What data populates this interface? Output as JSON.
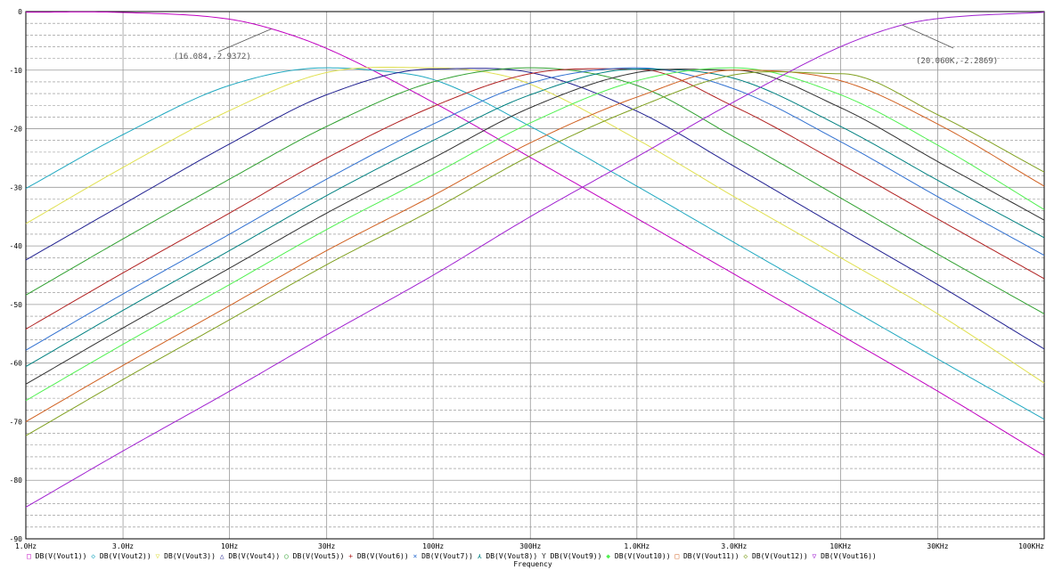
{
  "chart_data": {
    "type": "line",
    "title": "",
    "xlabel": "Frequency",
    "ylabel": "",
    "x_scale": "log",
    "xlim": [
      1,
      100000
    ],
    "ylim": [
      -90,
      0
    ],
    "x_ticks": [
      1,
      3,
      10,
      30,
      100,
      300,
      1000,
      3000,
      10000,
      30000,
      100000
    ],
    "x_tick_labels": [
      "1.0Hz",
      "3.0Hz",
      "10Hz",
      "30Hz",
      "100Hz",
      "300Hz",
      "1.0KHz",
      "3.0KHz",
      "10KHz",
      "30KHz",
      "100KHz"
    ],
    "y_ticks": [
      0,
      -10,
      -20,
      -30,
      -40,
      -50,
      -60,
      -70,
      -80,
      -90
    ],
    "y_tick_labels": [
      "0",
      "-10",
      "-20",
      "-30",
      "-40",
      "-50",
      "-60",
      "-70",
      "-80",
      "-90"
    ],
    "grid": true,
    "legend_position": "bottom",
    "series": [
      {
        "name": "DB(V(Vout1))",
        "color": "#c000c0",
        "marker": "□",
        "x": [
          1,
          3,
          10,
          16.08,
          30,
          100,
          300,
          1000,
          3000,
          10000,
          30000,
          100000
        ],
        "y": [
          -0.1,
          -0.15,
          -1.3,
          -2.94,
          -6.3,
          -15.5,
          -24.9,
          -35.3,
          -44.8,
          -55.2,
          -64.8,
          -75.8
        ]
      },
      {
        "name": "DB(V(Vout2))",
        "color": "#20a8c0",
        "marker": "◇",
        "x": [
          1,
          3,
          10,
          30,
          50,
          100,
          300,
          1000,
          3000,
          10000,
          30000,
          100000
        ],
        "y": [
          -30.2,
          -21.0,
          -12.6,
          -9.6,
          -10.0,
          -11.6,
          -19.6,
          -29.8,
          -39.4,
          -49.8,
          -59.3,
          -69.6
        ]
      },
      {
        "name": "DB(V(Vout3))",
        "color": "#e0e050",
        "marker": "▽",
        "x": [
          1,
          3,
          10,
          30,
          100,
          200,
          300,
          1000,
          3000,
          10000,
          30000,
          100000
        ],
        "y": [
          -36.2,
          -26.6,
          -16.9,
          -10.4,
          -9.6,
          -10.6,
          -12.4,
          -21.8,
          -31.6,
          -42.0,
          -51.6,
          -63.4
        ]
      },
      {
        "name": "DB(V(Vout4))",
        "color": "#202090",
        "marker": "△",
        "x": [
          1,
          3,
          10,
          30,
          100,
          300,
          1000,
          3000,
          10000,
          30000,
          100000
        ],
        "y": [
          -42.4,
          -32.9,
          -22.6,
          -14.2,
          -9.8,
          -10.4,
          -17.0,
          -26.4,
          -37.0,
          -46.6,
          -57.6
        ]
      },
      {
        "name": "DB(V(Vout5))",
        "color": "#30a030",
        "marker": "○",
        "x": [
          1,
          3,
          10,
          30,
          100,
          300,
          1000,
          3000,
          10000,
          30000,
          100000
        ],
        "y": [
          -48.4,
          -38.8,
          -28.6,
          -19.6,
          -12.0,
          -9.6,
          -12.6,
          -21.4,
          -31.8,
          -41.4,
          -51.6
        ]
      },
      {
        "name": "DB(V(Vout6))",
        "color": "#b02020",
        "marker": "+",
        "x": [
          1,
          3,
          10,
          30,
          100,
          300,
          1000,
          3000,
          10000,
          30000,
          100000
        ],
        "y": [
          -54.2,
          -44.6,
          -34.4,
          -25.0,
          -16.2,
          -10.6,
          -9.8,
          -16.2,
          -26.0,
          -35.4,
          -45.6
        ]
      },
      {
        "name": "DB(V(Vout7))",
        "color": "#3070d0",
        "marker": "×",
        "x": [
          1,
          3,
          10,
          30,
          100,
          300,
          1000,
          3000,
          10000,
          30000,
          100000
        ],
        "y": [
          -57.8,
          -48.2,
          -38.0,
          -28.6,
          -19.2,
          -12.2,
          -9.6,
          -13.2,
          -22.2,
          -31.6,
          -41.6
        ]
      },
      {
        "name": "DB(V(Vout8))",
        "color": "#008080",
        "marker": "⋏",
        "x": [
          1,
          3,
          10,
          30,
          100,
          300,
          1000,
          3000,
          10000,
          30000,
          100000
        ],
        "y": [
          -60.6,
          -51.0,
          -40.8,
          -31.4,
          -22.0,
          -14.2,
          -9.8,
          -11.4,
          -19.6,
          -28.8,
          -38.6
        ]
      },
      {
        "name": "DB(V(Vout9))",
        "color": "#303030",
        "marker": "Y",
        "x": [
          1,
          3,
          10,
          30,
          100,
          300,
          1000,
          3000,
          10000,
          30000,
          100000
        ],
        "y": [
          -63.6,
          -54.0,
          -43.8,
          -34.4,
          -25.0,
          -16.4,
          -10.4,
          -10.0,
          -16.4,
          -25.6,
          -35.6
        ]
      },
      {
        "name": "DB(V(Vout10))",
        "color": "#50f050",
        "marker": "◆",
        "x": [
          1,
          3,
          10,
          30,
          100,
          300,
          1000,
          3000,
          10000,
          30000,
          100000
        ],
        "y": [
          -66.4,
          -56.8,
          -46.6,
          -37.2,
          -27.8,
          -19.0,
          -11.8,
          -9.6,
          -14.2,
          -22.8,
          -33.8
        ]
      },
      {
        "name": "DB(V(Vout11))",
        "color": "#d06020",
        "marker": "□",
        "x": [
          1,
          3,
          10,
          30,
          100,
          300,
          1000,
          3000,
          10000,
          30000,
          100000
        ],
        "y": [
          -70.0,
          -60.4,
          -50.2,
          -40.8,
          -31.4,
          -22.4,
          -14.6,
          -10.0,
          -11.8,
          -19.2,
          -29.8
        ]
      },
      {
        "name": "DB(V(Vout12))",
        "color": "#80a020",
        "marker": "◇",
        "x": [
          1,
          3,
          10,
          30,
          100,
          300,
          1000,
          3000,
          10000,
          30000,
          100000
        ],
        "y": [
          -72.4,
          -62.8,
          -52.6,
          -43.2,
          -33.8,
          -24.6,
          -16.4,
          -10.8,
          -10.6,
          -17.6,
          -27.4
        ]
      },
      {
        "name": "DB(V(Vout16))",
        "color": "#a020d0",
        "marker": "▽",
        "x": [
          1,
          3,
          10,
          30,
          100,
          300,
          1000,
          3000,
          10000,
          20060,
          30000,
          100000
        ],
        "y": [
          -84.6,
          -75.0,
          -64.8,
          -55.2,
          -45.0,
          -35.0,
          -24.8,
          -15.4,
          -6.0,
          -2.29,
          -1.2,
          -0.1
        ]
      }
    ],
    "annotations": [
      {
        "text": "(16.084,-2.9372)",
        "x": 16.08,
        "y": -2.94
      },
      {
        "text": "(20.060K,-2.2869)",
        "x": 20060,
        "y": -2.29
      }
    ]
  }
}
